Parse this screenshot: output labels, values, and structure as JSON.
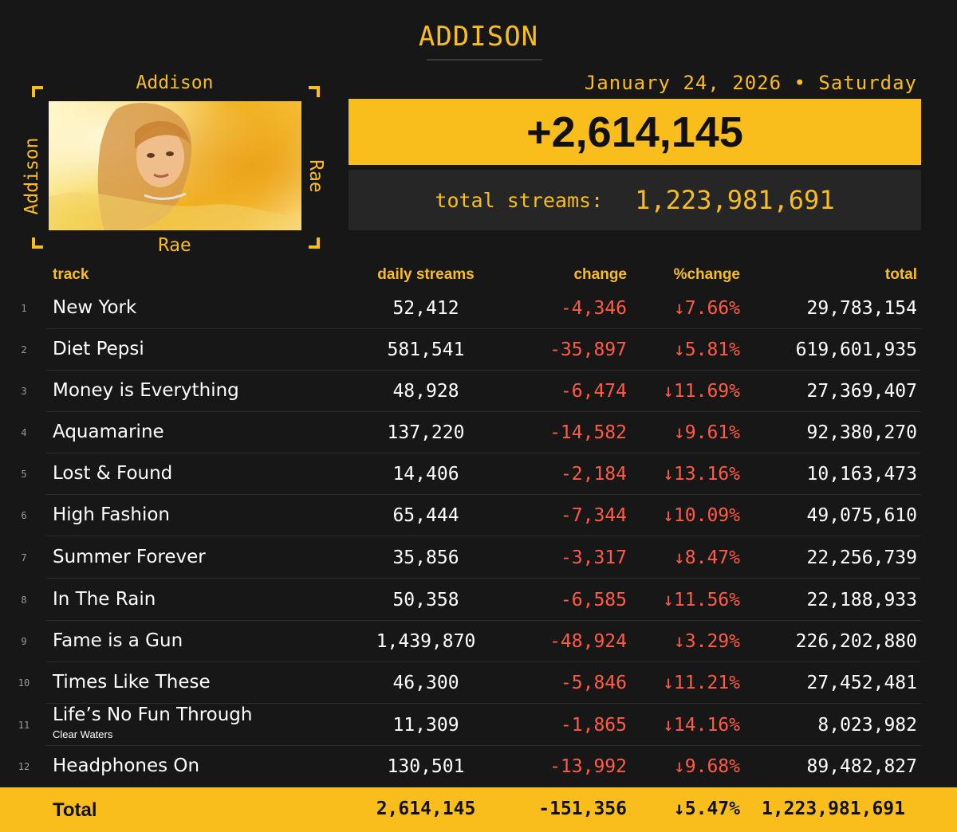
{
  "title": "ADDISON",
  "frame": {
    "top": "Addison",
    "bottom": "Rae",
    "left": "Addison",
    "right": "Rae"
  },
  "date": "January 24, 2026 • Saturday",
  "daily_total": "+2,614,145",
  "total_streams_label": "total streams:",
  "total_streams_value": "1,223,981,691",
  "headers": {
    "track": "track",
    "daily": "daily streams",
    "change": "change",
    "pct": "%change",
    "total": "total"
  },
  "rows": [
    {
      "num": "1",
      "track": "New York",
      "sub": "",
      "daily": "52,412",
      "change": "-4,346",
      "pct": "↓7.66%",
      "total": "29,783,154"
    },
    {
      "num": "2",
      "track": "Diet Pepsi",
      "sub": "",
      "daily": "581,541",
      "change": "-35,897",
      "pct": "↓5.81%",
      "total": "619,601,935"
    },
    {
      "num": "3",
      "track": "Money is Everything",
      "sub": "",
      "daily": "48,928",
      "change": "-6,474",
      "pct": "↓11.69%",
      "total": "27,369,407"
    },
    {
      "num": "4",
      "track": "Aquamarine",
      "sub": "",
      "daily": "137,220",
      "change": "-14,582",
      "pct": "↓9.61%",
      "total": "92,380,270"
    },
    {
      "num": "5",
      "track": "Lost & Found",
      "sub": "",
      "daily": "14,406",
      "change": "-2,184",
      "pct": "↓13.16%",
      "total": "10,163,473"
    },
    {
      "num": "6",
      "track": "High Fashion",
      "sub": "",
      "daily": "65,444",
      "change": "-7,344",
      "pct": "↓10.09%",
      "total": "49,075,610"
    },
    {
      "num": "7",
      "track": "Summer Forever",
      "sub": "",
      "daily": "35,856",
      "change": "-3,317",
      "pct": "↓8.47%",
      "total": "22,256,739"
    },
    {
      "num": "8",
      "track": "In The Rain",
      "sub": "",
      "daily": "50,358",
      "change": "-6,585",
      "pct": "↓11.56%",
      "total": "22,188,933"
    },
    {
      "num": "9",
      "track": "Fame is a Gun",
      "sub": "",
      "daily": "1,439,870",
      "change": "-48,924",
      "pct": "↓3.29%",
      "total": "226,202,880"
    },
    {
      "num": "10",
      "track": "Times Like These",
      "sub": "",
      "daily": "46,300",
      "change": "-5,846",
      "pct": "↓11.21%",
      "total": "27,452,481"
    },
    {
      "num": "11",
      "track": "Life’s No Fun Through",
      "sub": "Clear Waters",
      "daily": "11,309",
      "change": "-1,865",
      "pct": "↓14.16%",
      "total": "8,023,982"
    },
    {
      "num": "12",
      "track": "Headphones On",
      "sub": "",
      "daily": "130,501",
      "change": "-13,992",
      "pct": "↓9.68%",
      "total": "89,482,827"
    }
  ],
  "footer": {
    "label": "Total",
    "daily": "2,614,145",
    "change": "-151,356",
    "pct": "↓5.47%",
    "total": "1,223,981,691"
  },
  "colors": {
    "accent": "#f9bd1c",
    "background": "#171717",
    "negative": "#ff5b45",
    "panel": "#262626"
  }
}
